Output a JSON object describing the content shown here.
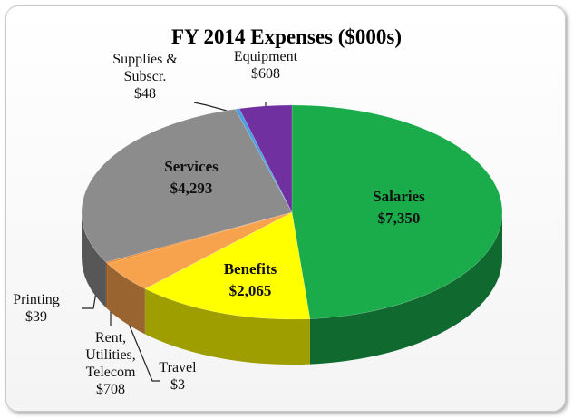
{
  "chart_data": {
    "type": "pie3d",
    "title": "FY 2014 Expenses ($000s)",
    "categories": [
      "Salaries",
      "Benefits",
      "Travel",
      "Rent, Utilities, Telecom",
      "Printing",
      "Services",
      "Supplies & Subscr.",
      "Equipment"
    ],
    "values": [
      7350,
      2065,
      3,
      708,
      39,
      4293,
      48,
      608
    ],
    "value_labels": [
      "$7,350",
      "$2,065",
      "$3",
      "$708",
      "$39",
      "$4,293",
      "$48",
      "$608"
    ],
    "colors": [
      "#1aab4b",
      "#ffff00",
      "#c9a23a",
      "#f7a24c",
      "#f08a30",
      "#8c8c8c",
      "#4a9fe0",
      "#7030a0"
    ]
  }
}
